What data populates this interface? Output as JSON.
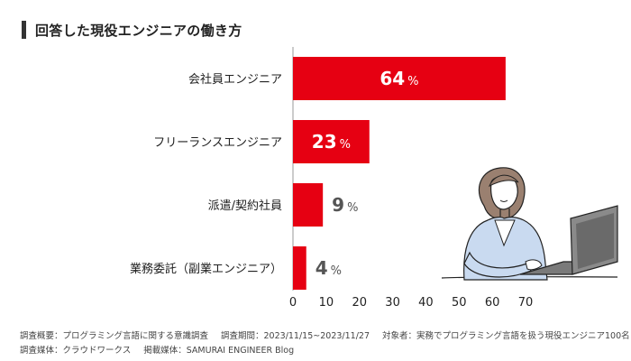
{
  "chart_data": {
    "type": "bar",
    "orientation": "horizontal",
    "title": "回答した現役エンジニアの働き方",
    "categories": [
      "会社員エンジニア",
      "フリーランスエンジニア",
      "派遣/契約社員",
      "業務委託（副業エンジニア）"
    ],
    "values": [
      64,
      23,
      9,
      4
    ],
    "value_labels": [
      {
        "num": "64",
        "unit": "%"
      },
      {
        "num": "23",
        "unit": "%"
      },
      {
        "num": "9",
        "unit": "%"
      },
      {
        "num": "4",
        "unit": "%"
      }
    ],
    "xlim": [
      0,
      70
    ],
    "xticks": [
      "0",
      "10",
      "20",
      "30",
      "40",
      "50",
      "60",
      "70"
    ],
    "bar_color": "#e60012",
    "inside_label_color": "#ffffff",
    "outside_label_color": "#555555"
  },
  "footer": {
    "line1_survey": "調査概要：プログラミング言語に関する意識調査",
    "line1_period": "調査期間：2023/11/15~2023/11/27",
    "line1_target": "対象者：実務でプログラミング言語を扱う現役エンジニア100名",
    "line2_media": "調査媒体：クラウドワークス",
    "line2_published": "掲載媒体：SAMURAI ENGINEER Blog"
  }
}
